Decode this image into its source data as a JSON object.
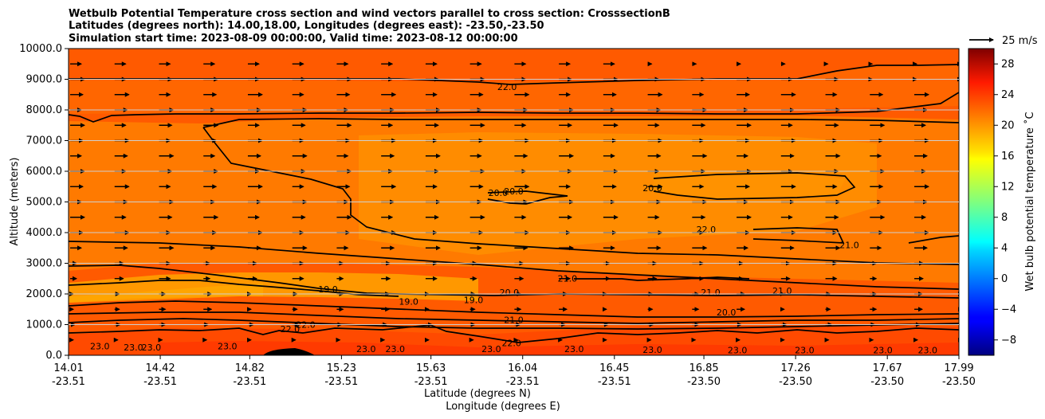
{
  "chart_data": {
    "type": "heatmap",
    "title_lines": [
      "Wetbulb Potential Temperature cross section and wind vectors parallel to cross section: CrosssectionB",
      "Latitudes (degrees north): 14.00,18.00, Longitudes (degrees east): -23.50,-23.50",
      "Simulation start time: 2023-08-09 00:00:00, Valid time: 2023-08-12 00:00:00"
    ],
    "ylabel": "Altitude (meters)",
    "xlabel_1": "Latitude (degrees N)",
    "xlabel_2": "Longitude (degrees E)",
    "ylim": [
      0,
      10000
    ],
    "y_ticks": [
      "0.0",
      "1000.0",
      "2000.0",
      "3000.0",
      "4000.0",
      "5000.0",
      "6000.0",
      "7000.0",
      "8000.0",
      "9000.0",
      "10000.0"
    ],
    "x_ticks_lat": [
      "14.01",
      "14.42",
      "14.82",
      "15.23",
      "15.63",
      "16.04",
      "16.45",
      "16.85",
      "17.26",
      "17.67",
      "17.99"
    ],
    "x_ticks_lon": [
      "-23.51",
      "-23.51",
      "-23.51",
      "-23.51",
      "-23.51",
      "-23.51",
      "-23.51",
      "-23.50",
      "-23.50",
      "-23.50",
      "-23.50"
    ],
    "colorbar": {
      "label": "Wet bulb potential temperature ˚C",
      "range": [
        -10,
        30
      ],
      "ticks": [
        "−8",
        "−4",
        "0",
        "4",
        "8",
        "12",
        "16",
        "20",
        "24",
        "28"
      ]
    },
    "quiver_key": "25 m/s",
    "contour_labels": [
      {
        "text": "22.0",
        "x": 15.97,
        "y": 8650
      },
      {
        "text": "20.0",
        "x": 15.93,
        "y": 5200
      },
      {
        "text": "20.0",
        "x": 16.0,
        "y": 5250
      },
      {
        "text": "20.0",
        "x": 16.62,
        "y": 5350
      },
      {
        "text": "22.0",
        "x": 16.86,
        "y": 4000
      },
      {
        "text": "21.0",
        "x": 17.5,
        "y": 3500
      },
      {
        "text": "21.0",
        "x": 16.24,
        "y": 2400
      },
      {
        "text": "19.0",
        "x": 15.17,
        "y": 2050
      },
      {
        "text": "19.0",
        "x": 15.53,
        "y": 1650
      },
      {
        "text": "19.0",
        "x": 15.82,
        "y": 1700
      },
      {
        "text": "20.0",
        "x": 15.98,
        "y": 1950
      },
      {
        "text": "21.0",
        "x": 16.88,
        "y": 1950
      },
      {
        "text": "21.0",
        "x": 17.2,
        "y": 2000
      },
      {
        "text": "20.0",
        "x": 16.95,
        "y": 1300
      },
      {
        "text": "21.0",
        "x": 16.0,
        "y": 1050
      },
      {
        "text": "22.0",
        "x": 15.0,
        "y": 750
      },
      {
        "text": "22.0",
        "x": 15.07,
        "y": 900
      },
      {
        "text": "22.0",
        "x": 15.99,
        "y": 300
      },
      {
        "text": "23.0",
        "x": 14.72,
        "y": 200
      },
      {
        "text": "23.0",
        "x": 14.15,
        "y": 200
      },
      {
        "text": "23.0",
        "x": 14.3,
        "y": 150
      },
      {
        "text": "23.0",
        "x": 14.38,
        "y": 150
      },
      {
        "text": "23.0",
        "x": 15.34,
        "y": 100
      },
      {
        "text": "23.0",
        "x": 15.47,
        "y": 100
      },
      {
        "text": "23.0",
        "x": 15.9,
        "y": 100
      },
      {
        "text": "23.0",
        "x": 16.27,
        "y": 100
      },
      {
        "text": "23.0",
        "x": 16.62,
        "y": 80
      },
      {
        "text": "23.0",
        "x": 17.0,
        "y": 60
      },
      {
        "text": "23.0",
        "x": 17.3,
        "y": 60
      },
      {
        "text": "23.0",
        "x": 17.65,
        "y": 60
      },
      {
        "text": "23.0",
        "x": 17.85,
        "y": 60
      }
    ]
  }
}
